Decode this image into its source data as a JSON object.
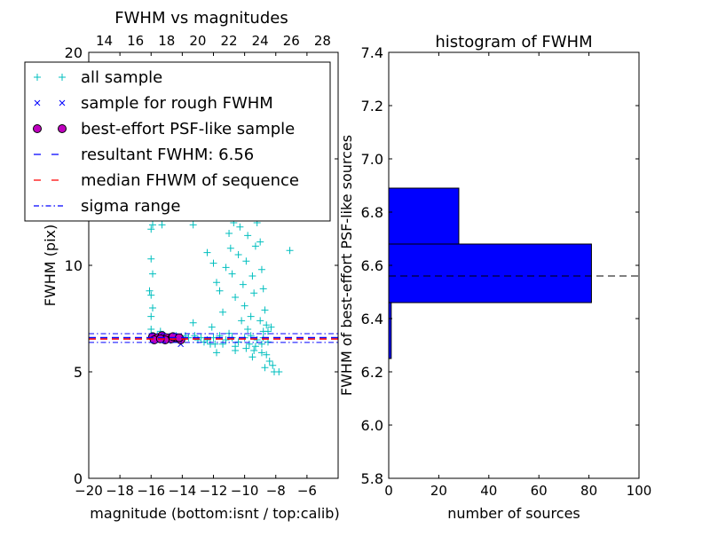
{
  "chart_data": [
    {
      "type": "scatter",
      "title": "FWHM vs magnitudes",
      "xlabel": "magnitude (bottom:isnt / top:calib)",
      "ylabel": "FWHM (pix)",
      "xlim": [
        -20,
        -4
      ],
      "ylim": [
        0,
        20
      ],
      "xticks": [
        "−20",
        "−18",
        "−16",
        "−14",
        "−12",
        "−10",
        "−8",
        "−6"
      ],
      "xtick_values": [
        -20,
        -18,
        -16,
        -14,
        -12,
        -10,
        -8,
        -6
      ],
      "yticks": [
        "0",
        "5",
        "10",
        "15",
        "20"
      ],
      "ytick_values": [
        0,
        5,
        10,
        15,
        20
      ],
      "top_xticks": [
        "14",
        "16",
        "18",
        "20",
        "22",
        "24",
        "26",
        "28"
      ],
      "top_xtick_values": [
        14,
        16,
        18,
        20,
        22,
        24,
        26,
        28
      ],
      "top_xlim": [
        13,
        29
      ],
      "legend_position": "upper-left",
      "legend": [
        {
          "label": "all sample",
          "marker": "plus",
          "color": "#00bfbf"
        },
        {
          "label": "sample for rough FWHM",
          "marker": "x",
          "color": "#0000ff"
        },
        {
          "label": "best-effort PSF-like sample",
          "marker": "circle",
          "color": "#bf00bf"
        },
        {
          "label": "resultant FWHM: 6.56",
          "marker": "dashed",
          "color": "#0000ff"
        },
        {
          "label": "median FHWM of sequence",
          "marker": "dashed",
          "color": "#ff0000"
        },
        {
          "label": "sigma range",
          "marker": "dashdot",
          "color": "#0000ff"
        }
      ],
      "hlines": {
        "resultant": 6.56,
        "median": 6.56,
        "sigma_low": 6.38,
        "sigma_high": 6.79
      },
      "series": [
        {
          "name": "all sample",
          "points": [
            [
              -16,
              6.6
            ],
            [
              -15.6,
              6.7
            ],
            [
              -15.2,
              6.5
            ],
            [
              -14.8,
              6.6
            ],
            [
              -14.4,
              6.7
            ],
            [
              -14,
              6.5
            ],
            [
              -13.6,
              6.6
            ],
            [
              -13.2,
              6.7
            ],
            [
              -12.8,
              6.6
            ],
            [
              -12.4,
              6.5
            ],
            [
              -12,
              6.6
            ],
            [
              -11.6,
              6.7
            ],
            [
              -11.2,
              6.5
            ],
            [
              -10.8,
              6.6
            ],
            [
              -10.4,
              6.4
            ],
            [
              -10,
              6.6
            ],
            [
              -9.6,
              6.7
            ],
            [
              -9.2,
              6.5
            ],
            [
              -8.8,
              6.6
            ],
            [
              -8.5,
              6.4
            ],
            [
              -13.8,
              6.7
            ],
            [
              -12.6,
              6.4
            ],
            [
              -11.4,
              6.3
            ],
            [
              -10.6,
              6.2
            ],
            [
              -9.9,
              6.1
            ],
            [
              -9.4,
              6.0
            ],
            [
              -8.9,
              5.9
            ],
            [
              -11,
              6.8
            ],
            [
              -12.2,
              6.3
            ],
            [
              -13,
              6.5
            ],
            [
              -16,
              7.0
            ],
            [
              -16,
              7.6
            ],
            [
              -15.9,
              8.0
            ],
            [
              -16,
              8.6
            ],
            [
              -16.1,
              8.8
            ],
            [
              -15.9,
              9.6
            ],
            [
              -16,
              10.3
            ],
            [
              -16,
              11.7
            ],
            [
              -15.9,
              11.9
            ],
            [
              -15.3,
              11.9
            ],
            [
              -15.4,
              6.9
            ],
            [
              -13.3,
              7.3
            ],
            [
              -12.1,
              7.1
            ],
            [
              -11.9,
              6.3
            ],
            [
              -12.4,
              10.6
            ],
            [
              -12.0,
              10.1
            ],
            [
              -11.8,
              9.2
            ],
            [
              -11.6,
              8.8
            ],
            [
              -11.4,
              7.8
            ],
            [
              -11.2,
              9.9
            ],
            [
              -11.0,
              11.5
            ],
            [
              -10.9,
              10.8
            ],
            [
              -10.8,
              9.6
            ],
            [
              -10.6,
              8.5
            ],
            [
              -10.4,
              10.5
            ],
            [
              -10.3,
              11.8
            ],
            [
              -10.2,
              12.9
            ],
            [
              -10.1,
              9.1
            ],
            [
              -10.0,
              8.1
            ],
            [
              -9.9,
              10.2
            ],
            [
              -9.8,
              11.4
            ],
            [
              -9.7,
              12.3
            ],
            [
              -9.6,
              13.6
            ],
            [
              -9.5,
              9.5
            ],
            [
              -9.4,
              8.7
            ],
            [
              -9.3,
              10.9
            ],
            [
              -9.2,
              12.0
            ],
            [
              -9.1,
              14.2
            ],
            [
              -9.0,
              11.1
            ],
            [
              -8.9,
              9.8
            ],
            [
              -8.8,
              8.9
            ],
            [
              -8.7,
              7.9
            ],
            [
              -8.6,
              7.2
            ],
            [
              -9.3,
              15.0
            ],
            [
              -9.5,
              16.3
            ],
            [
              -9.2,
              17.8
            ],
            [
              -9.0,
              19.2
            ],
            [
              -9.4,
              18.0
            ],
            [
              -9.1,
              16.6
            ],
            [
              -8.9,
              13.2
            ],
            [
              -9.6,
              7.6
            ],
            [
              -9.8,
              7.0
            ],
            [
              -10.2,
              7.4
            ],
            [
              -9.0,
              7.4
            ],
            [
              -8.8,
              6.9
            ],
            [
              -8.5,
              6.9
            ],
            [
              -8.3,
              7.1
            ],
            [
              -8.6,
              5.8
            ],
            [
              -8.4,
              5.5
            ],
            [
              -8.2,
              5.3
            ],
            [
              -8.1,
              5.0
            ],
            [
              -7.8,
              5.0
            ],
            [
              -8.7,
              5.2
            ],
            [
              -9.5,
              5.7
            ],
            [
              -10.6,
              6.0
            ],
            [
              -11.8,
              5.9
            ],
            [
              -7.1,
              10.7
            ],
            [
              -13.3,
              11.9
            ],
            [
              -11.0,
              15.5
            ],
            [
              -10.5,
              16.0
            ],
            [
              -10.7,
              12.0
            ],
            [
              -9.9,
              14.0
            ],
            [
              -9.3,
              6.2
            ],
            [
              -8.9,
              6.3
            ],
            [
              -9.7,
              6.3
            ]
          ]
        },
        {
          "name": "sample for rough FWHM",
          "points": [
            [
              -15.9,
              6.6
            ],
            [
              -15.5,
              6.55
            ],
            [
              -15.1,
              6.6
            ],
            [
              -14.7,
              6.5
            ],
            [
              -14.3,
              6.55
            ],
            [
              -14.1,
              6.3
            ],
            [
              -15.3,
              6.7
            ],
            [
              -14.9,
              6.45
            ]
          ]
        },
        {
          "name": "best-effort PSF-like sample",
          "points": [
            [
              -15.9,
              6.65
            ],
            [
              -15.6,
              6.6
            ],
            [
              -15.3,
              6.7
            ],
            [
              -15.0,
              6.6
            ],
            [
              -14.7,
              6.55
            ],
            [
              -14.4,
              6.6
            ],
            [
              -14.1,
              6.5
            ],
            [
              -15.8,
              6.5
            ],
            [
              -15.1,
              6.5
            ],
            [
              -14.6,
              6.65
            ],
            [
              -14.2,
              6.6
            ],
            [
              -15.4,
              6.55
            ]
          ]
        }
      ]
    },
    {
      "type": "bar",
      "orientation": "horizontal",
      "title": "histogram of FWHM",
      "xlabel": "number of sources",
      "ylabel": "FWHM of best-effort PSF-like sources",
      "xlim": [
        0,
        100
      ],
      "ylim": [
        5.8,
        7.4
      ],
      "xticks": [
        "0",
        "20",
        "40",
        "60",
        "80",
        "100"
      ],
      "xtick_values": [
        0,
        20,
        40,
        60,
        80,
        100
      ],
      "yticks": [
        "5.8",
        "6.0",
        "6.2",
        "6.4",
        "6.6",
        "6.8",
        "7.0",
        "7.2",
        "7.4"
      ],
      "ytick_values": [
        5.8,
        6.0,
        6.2,
        6.4,
        6.6,
        6.8,
        7.0,
        7.2,
        7.4
      ],
      "bins": [
        [
          6.25,
          6.46
        ],
        [
          6.46,
          6.68
        ],
        [
          6.68,
          6.89
        ]
      ],
      "values": [
        1,
        81,
        28
      ],
      "bar_color": "#0000ff",
      "hline": 6.56
    }
  ]
}
